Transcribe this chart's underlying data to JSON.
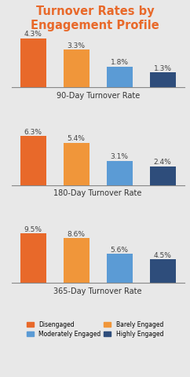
{
  "title": "Turnover Rates by Engagement Profile",
  "title_color": "#E8692A",
  "background_color": "#E8E8E8",
  "groups": [
    {
      "label": "90-Day Turnover Rate",
      "values": [
        4.3,
        3.3,
        1.8,
        1.3
      ]
    },
    {
      "label": "180-Day Turnover Rate",
      "values": [
        6.3,
        5.4,
        3.1,
        2.4
      ]
    },
    {
      "label": "365-Day Turnover Rate",
      "values": [
        9.5,
        8.6,
        5.6,
        4.5
      ]
    }
  ],
  "bar_colors": [
    "#E8692A",
    "#F0963A",
    "#5B9BD5",
    "#2E4D7B"
  ],
  "legend_labels": [
    "Disengaged",
    "Barely Engaged",
    "Moderately Engaged",
    "Highly Engaged"
  ],
  "label_fontsize": 6.5,
  "group_label_fontsize": 7.0,
  "title_fontsize": 10.5
}
